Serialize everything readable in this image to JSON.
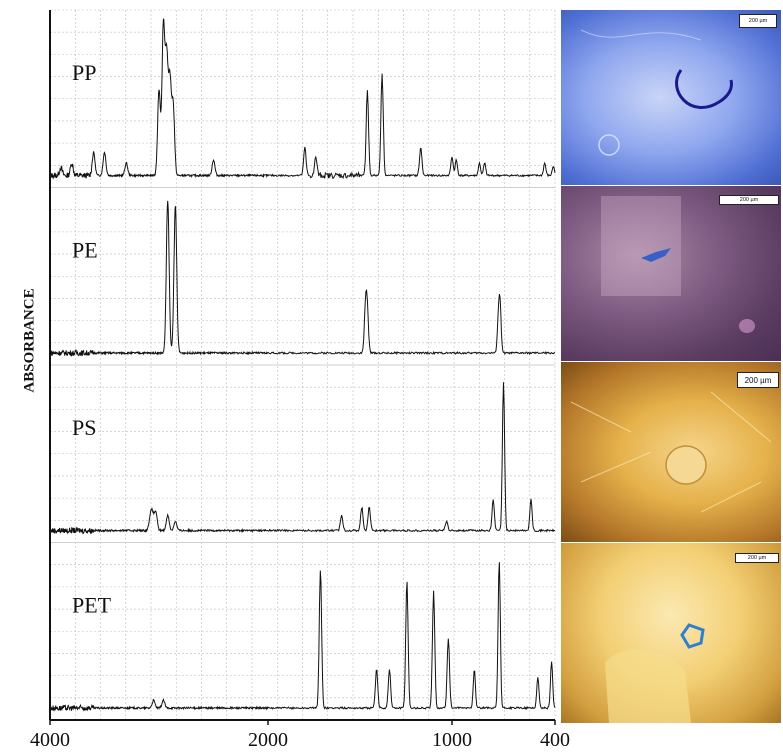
{
  "chart_data": {
    "type": "line",
    "ylabel": "ABSORBANCE",
    "xlabel": "",
    "xlim": [
      4000,
      400
    ],
    "x_ticks": [
      "4000",
      "2000",
      "1000",
      "400"
    ],
    "x_tick_values": [
      4000,
      2000,
      1000,
      400
    ],
    "grid": true,
    "series": [
      {
        "name": "PP",
        "peaks": [
          [
            3900,
            0.05
          ],
          [
            3800,
            0.08
          ],
          [
            3600,
            0.15
          ],
          [
            3500,
            0.15
          ],
          [
            3300,
            0.08
          ],
          [
            3000,
            0.55
          ],
          [
            2960,
            0.95
          ],
          [
            2930,
            0.75
          ],
          [
            2900,
            0.6
          ],
          [
            2870,
            0.45
          ],
          [
            2500,
            0.1
          ],
          [
            1800,
            0.18
          ],
          [
            1740,
            0.12
          ],
          [
            1460,
            0.55
          ],
          [
            1380,
            0.65
          ],
          [
            1170,
            0.18
          ],
          [
            1000,
            0.12
          ],
          [
            975,
            0.1
          ],
          [
            840,
            0.08
          ],
          [
            810,
            0.08
          ],
          [
            460,
            0.08
          ],
          [
            410,
            0.06
          ]
        ]
      },
      {
        "name": "PE",
        "peaks": [
          [
            2920,
            0.98
          ],
          [
            2850,
            0.95
          ],
          [
            1470,
            0.3
          ],
          [
            1460,
            0.25
          ],
          [
            720,
            0.3
          ],
          [
            730,
            0.2
          ]
        ]
      },
      {
        "name": "PS",
        "peaks": [
          [
            3080,
            0.08
          ],
          [
            3060,
            0.1
          ],
          [
            3030,
            0.12
          ],
          [
            2920,
            0.1
          ],
          [
            2850,
            0.06
          ],
          [
            1600,
            0.1
          ],
          [
            1490,
            0.15
          ],
          [
            1450,
            0.15
          ],
          [
            1030,
            0.06
          ],
          [
            760,
            0.2
          ],
          [
            700,
            0.95
          ],
          [
            540,
            0.2
          ]
        ]
      },
      {
        "name": "PET",
        "peaks": [
          [
            3050,
            0.05
          ],
          [
            2960,
            0.05
          ],
          [
            1715,
            0.9
          ],
          [
            1410,
            0.25
          ],
          [
            1340,
            0.25
          ],
          [
            1245,
            0.82
          ],
          [
            1100,
            0.75
          ],
          [
            1020,
            0.45
          ],
          [
            870,
            0.25
          ],
          [
            725,
            0.95
          ],
          [
            500,
            0.2
          ],
          [
            420,
            0.3
          ]
        ]
      }
    ]
  },
  "panels": [
    {
      "label": "PP",
      "scalebar": "200 µm"
    },
    {
      "label": "PE",
      "scalebar": "200 µm"
    },
    {
      "label": "PS",
      "scalebar": "200 µm"
    },
    {
      "label": "PET",
      "scalebar": "200 µm"
    }
  ]
}
